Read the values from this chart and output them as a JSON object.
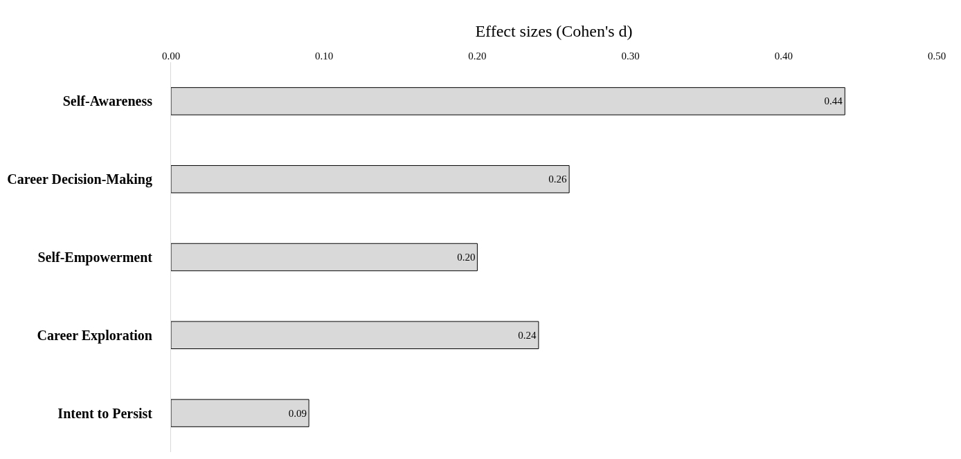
{
  "chart_data": {
    "type": "bar",
    "orientation": "horizontal",
    "xlabel": "Effect sizes (Cohen's d)",
    "categories": [
      "Self-Awareness",
      "Career Decision-Making",
      "Self-Empowerment",
      "Career Exploration",
      "Intent to Persist"
    ],
    "values": [
      0.44,
      0.26,
      0.2,
      0.24,
      0.09
    ],
    "value_labels": [
      "0.44",
      "0.26",
      "0.20",
      "0.24",
      "0.09"
    ],
    "color": "#d9d9d9",
    "xlim": [
      0,
      0.5
    ],
    "xticks": [
      {
        "value": 0,
        "label": "0.00"
      },
      {
        "value": 0.1,
        "label": "0.10"
      },
      {
        "value": 0.2,
        "label": "0.20"
      },
      {
        "value": 0.3,
        "label": "0.30"
      },
      {
        "value": 0.4,
        "label": "0.40"
      },
      {
        "value": 0.5,
        "label": "0.50"
      }
    ],
    "legend": false
  }
}
